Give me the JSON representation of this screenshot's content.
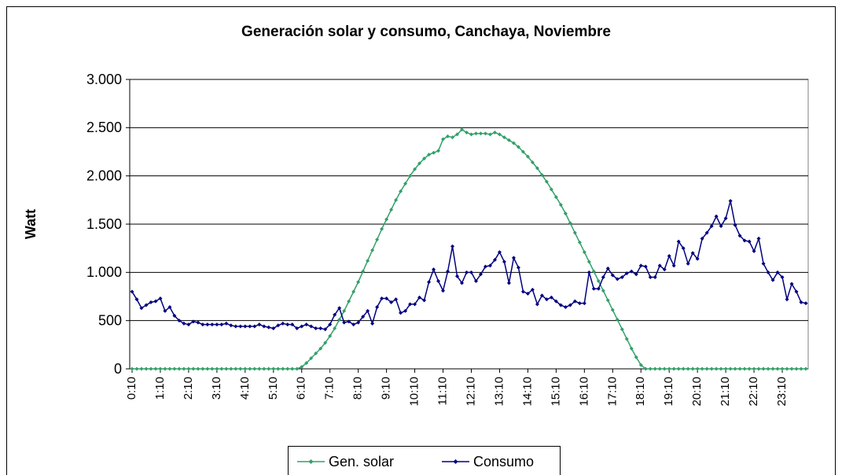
{
  "chart_data": {
    "type": "line",
    "title": "Generación solar y consumo, Canchaya, Noviembre",
    "y_label": "Watt",
    "categories": [
      "0:10",
      null,
      null,
      null,
      null,
      null,
      "1:10",
      null,
      null,
      null,
      null,
      null,
      "2:10",
      null,
      null,
      null,
      null,
      null,
      "3:10",
      null,
      null,
      null,
      null,
      null,
      "4:10",
      null,
      null,
      null,
      null,
      null,
      "5:10",
      null,
      null,
      null,
      null,
      null,
      "6:10",
      null,
      null,
      null,
      null,
      null,
      "7:10",
      null,
      null,
      null,
      null,
      null,
      "8:10",
      null,
      null,
      null,
      null,
      null,
      "9:10",
      null,
      null,
      null,
      null,
      null,
      "10:10",
      null,
      null,
      null,
      null,
      null,
      "11:10",
      null,
      null,
      null,
      null,
      null,
      "12:10",
      null,
      null,
      null,
      null,
      null,
      "13:10",
      null,
      null,
      null,
      null,
      null,
      "14:10",
      null,
      null,
      null,
      null,
      null,
      "15:10",
      null,
      null,
      null,
      null,
      null,
      "16:10",
      null,
      null,
      null,
      null,
      null,
      "17:10",
      null,
      null,
      null,
      null,
      null,
      "18:10",
      null,
      null,
      null,
      null,
      null,
      "19:10",
      null,
      null,
      null,
      null,
      null,
      "20:10",
      null,
      null,
      null,
      null,
      null,
      "21:10",
      null,
      null,
      null,
      null,
      null,
      "22:10",
      null,
      null,
      null,
      null,
      null,
      "23:10",
      null,
      null,
      null,
      null,
      null
    ],
    "series": [
      {
        "name": "Gen. solar",
        "color": "#33a06a",
        "values": [
          0,
          0,
          0,
          0,
          0,
          0,
          0,
          0,
          0,
          0,
          0,
          0,
          0,
          0,
          0,
          0,
          0,
          0,
          0,
          0,
          0,
          0,
          0,
          0,
          0,
          0,
          0,
          0,
          0,
          0,
          0,
          0,
          0,
          0,
          0,
          0,
          20,
          60,
          110,
          160,
          210,
          270,
          340,
          420,
          510,
          600,
          700,
          800,
          900,
          1010,
          1120,
          1230,
          1340,
          1450,
          1550,
          1650,
          1750,
          1840,
          1920,
          2000,
          2070,
          2130,
          2180,
          2220,
          2240,
          2260,
          2380,
          2410,
          2400,
          2430,
          2480,
          2450,
          2430,
          2440,
          2440,
          2440,
          2430,
          2450,
          2430,
          2400,
          2370,
          2340,
          2300,
          2250,
          2200,
          2140,
          2080,
          2010,
          1940,
          1860,
          1780,
          1700,
          1610,
          1510,
          1410,
          1310,
          1210,
          1110,
          1010,
          910,
          810,
          710,
          610,
          510,
          410,
          310,
          210,
          120,
          40,
          0,
          0,
          0,
          0,
          0,
          0,
          0,
          0,
          0,
          0,
          0,
          0,
          0,
          0,
          0,
          0,
          0,
          0,
          0,
          0,
          0,
          0,
          0,
          0,
          0,
          0,
          0,
          0,
          0,
          0,
          0,
          0,
          0,
          0,
          0
        ]
      },
      {
        "name": "Consumo",
        "color": "#000080",
        "values": [
          800,
          720,
          630,
          660,
          690,
          700,
          730,
          600,
          640,
          550,
          500,
          470,
          460,
          490,
          480,
          460,
          460,
          460,
          460,
          460,
          470,
          450,
          440,
          440,
          440,
          440,
          440,
          460,
          440,
          430,
          420,
          450,
          470,
          460,
          460,
          420,
          440,
          460,
          440,
          420,
          420,
          410,
          460,
          560,
          630,
          480,
          490,
          460,
          480,
          540,
          600,
          470,
          640,
          730,
          730,
          690,
          720,
          580,
          600,
          670,
          670,
          740,
          710,
          900,
          1030,
          910,
          810,
          1010,
          1270,
          960,
          890,
          1000,
          1000,
          910,
          980,
          1060,
          1070,
          1130,
          1210,
          1110,
          890,
          1150,
          1050,
          800,
          780,
          820,
          670,
          760,
          720,
          740,
          700,
          660,
          640,
          660,
          700,
          680,
          680,
          1000,
          830,
          830,
          950,
          1040,
          970,
          930,
          950,
          990,
          1010,
          980,
          1070,
          1060,
          950,
          950,
          1070,
          1030,
          1170,
          1070,
          1320,
          1250,
          1090,
          1200,
          1140,
          1350,
          1410,
          1480,
          1580,
          1480,
          1560,
          1740,
          1490,
          1380,
          1330,
          1320,
          1220,
          1350,
          1090,
          1000,
          920,
          1000,
          950,
          720,
          880,
          800,
          690,
          680
        ]
      }
    ],
    "ylim": [
      0,
      3000
    ],
    "yticks": [
      0,
      500,
      {
        "value": 1000,
        "label": "1.000"
      },
      {
        "value": 1500,
        "label": "1.500"
      },
      {
        "value": 2000,
        "label": "2.000"
      },
      {
        "value": 2500,
        "label": "2.500"
      },
      {
        "value": 3000,
        "label": "3.000"
      }
    ],
    "grid": true,
    "legend": "bottom"
  }
}
